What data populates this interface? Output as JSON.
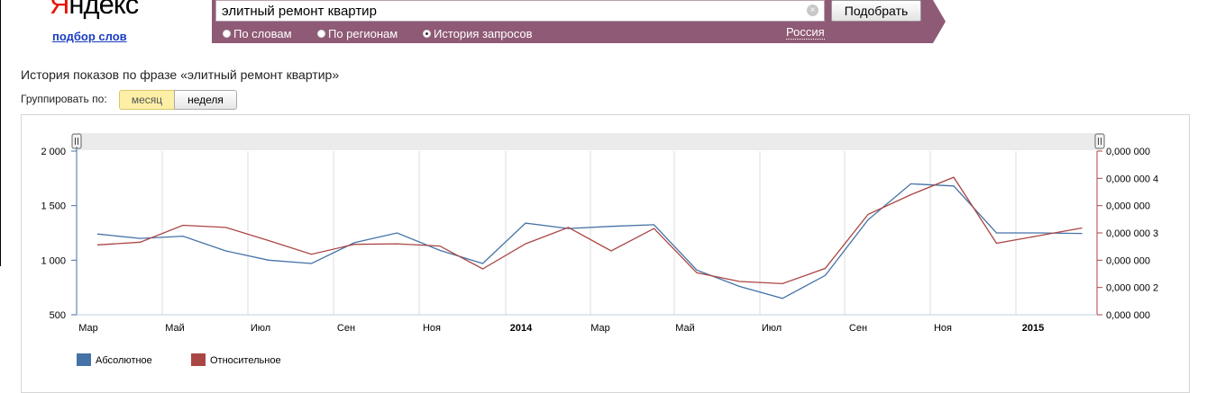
{
  "header": {
    "logo_text": "Яндекс",
    "sub_link": "подбор слов",
    "search": {
      "value": "элитный ремонт квартир",
      "clear_icon": "clear-icon"
    },
    "submit_label": "Подобрать",
    "modes": [
      {
        "label": "По словам",
        "selected": false
      },
      {
        "label": "По регионам",
        "selected": false
      },
      {
        "label": "История запросов",
        "selected": true
      }
    ],
    "region": "Россия"
  },
  "page": {
    "heading": "История показов по фразе «элитный ремонт квартир»",
    "group_label": "Группировать по:",
    "group_options": [
      {
        "label": "месяц",
        "active": true
      },
      {
        "label": "неделя",
        "active": false
      }
    ]
  },
  "colors": {
    "absolute": "#4572a7",
    "relative": "#aa4643",
    "header_bar": "#8f5a75"
  },
  "chart_data": {
    "type": "line",
    "x": [
      "2013-03",
      "2013-04",
      "2013-05",
      "2013-06",
      "2013-07",
      "2013-08",
      "2013-09",
      "2013-10",
      "2013-11",
      "2013-12",
      "2014-01",
      "2014-02",
      "2014-03",
      "2014-04",
      "2014-05",
      "2014-06",
      "2014-07",
      "2014-08",
      "2014-09",
      "2014-10",
      "2014-11",
      "2014-12",
      "2015-01",
      "2015-02"
    ],
    "x_tick_labels": [
      "Мар",
      "Май",
      "Июл",
      "Сен",
      "Ноя",
      "2014",
      "Мар",
      "Май",
      "Июл",
      "Сен",
      "Ноя",
      "2015"
    ],
    "y_left_ticks": [
      "2 000",
      "1 500",
      "1 000",
      "500"
    ],
    "y_left_lim": [
      500,
      2000
    ],
    "y_right_ticks": [
      "0,000 000",
      "0,000 000 4",
      "0,000 000",
      "0,000 000 3",
      "0,000 000",
      "0,000 000 2",
      "0,000 000"
    ],
    "series": [
      {
        "name": "Абсолютное",
        "axis": "left",
        "values": [
          1240,
          1200,
          1220,
          1085,
          1000,
          970,
          1160,
          1250,
          1090,
          970,
          1340,
          1290,
          1310,
          1325,
          910,
          760,
          650,
          860,
          1370,
          1700,
          1680,
          1250,
          1250,
          1245
        ]
      },
      {
        "name": "Относительное",
        "axis": "left",
        "values": [
          1140,
          1165,
          1320,
          1300,
          1180,
          1055,
          1145,
          1150,
          1130,
          920,
          1150,
          1300,
          1085,
          1290,
          885,
          805,
          785,
          925,
          1420,
          1600,
          1760,
          1155,
          1225,
          1295
        ]
      }
    ],
    "grid": true,
    "legend": "bottom-left"
  }
}
